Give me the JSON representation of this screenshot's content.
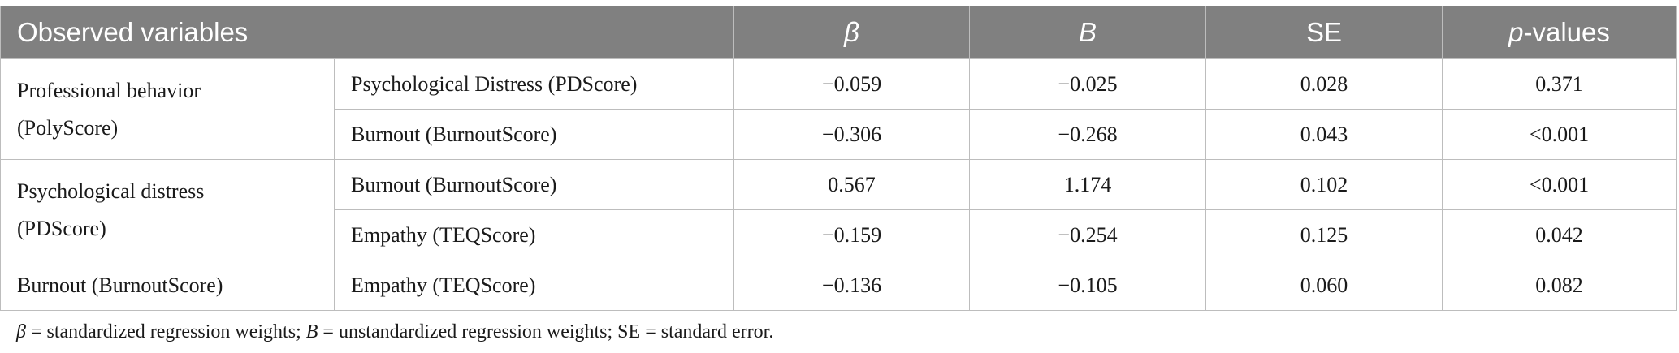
{
  "table": {
    "header": {
      "observed": "Observed variables",
      "beta": "β",
      "b": "B",
      "se": "SE",
      "p": [
        "p",
        "-values"
      ]
    },
    "groups": [
      {
        "variable": "Professional behavior (PolyScore)",
        "rows": [
          [
            "Psychological Distress (PDScore)",
            "−0.059",
            "−0.025",
            "0.028",
            "0.371"
          ],
          [
            "Burnout (BurnoutScore)",
            "−0.306",
            "−0.268",
            "0.043",
            "<0.001"
          ]
        ]
      },
      {
        "variable": "Psychological distress (PDScore)",
        "rows": [
          [
            "Burnout (BurnoutScore)",
            "0.567",
            "1.174",
            "0.102",
            "<0.001"
          ],
          [
            "Empathy (TEQScore)",
            "−0.159",
            "−0.254",
            "0.125",
            "0.042"
          ]
        ]
      },
      {
        "variable": "Burnout (BurnoutScore)",
        "rows": [
          [
            "Empathy (TEQScore)",
            "−0.136",
            "−0.105",
            "0.060",
            "0.082"
          ]
        ]
      }
    ]
  },
  "footnote": [
    "β",
    " = standardized regression weights; ",
    "B",
    " = unstandardized regression weights; SE = standard error."
  ]
}
